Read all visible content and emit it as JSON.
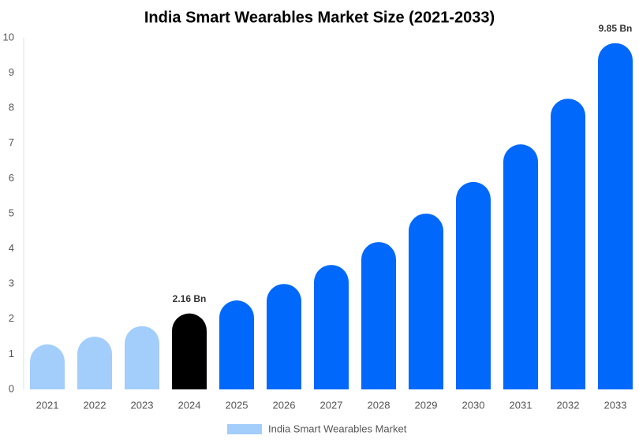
{
  "chart_data": {
    "type": "bar",
    "title": "India Smart Wearables Market Size (2021-2033)",
    "categories": [
      "2021",
      "2022",
      "2023",
      "2024",
      "2025",
      "2026",
      "2027",
      "2028",
      "2029",
      "2030",
      "2031",
      "2032",
      "2033"
    ],
    "series": [
      {
        "name": "India Smart Wearables Market",
        "color": "#a3cdfb",
        "values": [
          1.28,
          1.5,
          1.8,
          2.16,
          2.53,
          3.0,
          3.54,
          4.19,
          5.0,
          5.9,
          6.97,
          8.27,
          9.85
        ],
        "value_labels": [
          null,
          null,
          null,
          "2.16 Bn",
          null,
          null,
          null,
          null,
          null,
          null,
          null,
          null,
          "9.85 Bn"
        ],
        "colors": [
          "#a3cdfb",
          "#a3cdfb",
          "#a3cdfb",
          "#000000",
          "#0068fa",
          "#0068fa",
          "#0068fa",
          "#0068fa",
          "#0068fa",
          "#0068fa",
          "#0068fa",
          "#0068fa",
          "#0068fa"
        ]
      }
    ],
    "ylim": [
      0,
      10
    ],
    "yticks": [
      0,
      1,
      2,
      3,
      4,
      5,
      6,
      7,
      8,
      9,
      10
    ],
    "grid": false,
    "legend": "bottom"
  }
}
